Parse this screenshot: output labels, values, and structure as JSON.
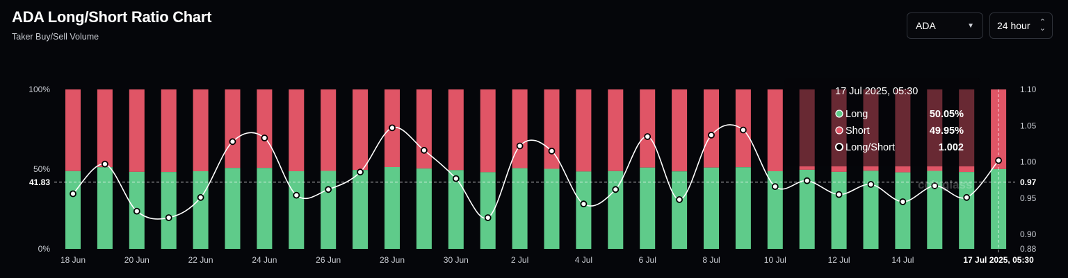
{
  "header": {
    "title": "ADA Long/Short Ratio Chart",
    "subtitle": "Taker Buy/Sell Volume"
  },
  "controls": {
    "symbol": "ADA",
    "interval": "24 hour"
  },
  "colors": {
    "long": "#5fcb8a",
    "short": "#e05566",
    "line": "#ffffff",
    "background": "#05060a"
  },
  "watermark": "coinglass",
  "chart_data": {
    "type": "bar",
    "title": "ADA Long/Short Ratio Chart",
    "subtitle": "Taker Buy/Sell Volume",
    "categories": [
      "18 Jun",
      "19 Jun",
      "20 Jun",
      "21 Jun",
      "22 Jun",
      "23 Jun",
      "24 Jun",
      "25 Jun",
      "26 Jun",
      "27 Jun",
      "28 Jun",
      "29 Jun",
      "30 Jun",
      "1 Jul",
      "2 Jul",
      "3 Jul",
      "4 Jul",
      "5 Jul",
      "6 Jul",
      "7 Jul",
      "8 Jul",
      "9 Jul",
      "10 Jul",
      "11 Jul",
      "12 Jul",
      "13 Jul",
      "14 Jul",
      "15 Jul",
      "16 Jul",
      "17 Jul"
    ],
    "x_tick_labels": [
      "18 Jun",
      "20 Jun",
      "22 Jun",
      "24 Jun",
      "26 Jun",
      "28 Jun",
      "30 Jun",
      "2 Jul",
      "4 Jul",
      "6 Jul",
      "8 Jul",
      "10 Jul",
      "12 Jul",
      "14 Jul"
    ],
    "series": [
      {
        "name": "Long",
        "unit": "%",
        "values": [
          48.8,
          51.2,
          48.3,
          48.2,
          48.7,
          50.8,
          50.8,
          48.7,
          48.9,
          49.5,
          51.3,
          50.4,
          49.4,
          48.1,
          50.6,
          50.2,
          48.5,
          48.8,
          51.0,
          48.6,
          51.0,
          51.2,
          48.7,
          49.6,
          48.3,
          49.0,
          48.0,
          48.9,
          48.2,
          50.05
        ]
      },
      {
        "name": "Short",
        "unit": "%",
        "values": [
          51.2,
          48.8,
          51.7,
          51.8,
          51.3,
          49.2,
          49.2,
          51.3,
          51.1,
          50.5,
          48.7,
          49.6,
          50.6,
          51.9,
          49.4,
          49.8,
          51.5,
          51.2,
          49.0,
          51.4,
          49.0,
          48.8,
          51.3,
          50.4,
          51.7,
          51.0,
          52.0,
          51.1,
          51.8,
          49.95
        ]
      },
      {
        "name": "Long/Short",
        "values": [
          0.956,
          0.997,
          0.932,
          0.923,
          0.951,
          1.028,
          1.033,
          0.954,
          0.962,
          0.986,
          1.047,
          1.016,
          0.977,
          0.923,
          1.022,
          1.015,
          0.942,
          0.962,
          1.035,
          0.948,
          1.037,
          1.044,
          0.966,
          0.974,
          0.955,
          0.969,
          0.945,
          0.967,
          0.951,
          1.002
        ]
      }
    ],
    "y_left": {
      "ticks": [
        "0%",
        "50%",
        "100%"
      ],
      "ylim": [
        0,
        100
      ]
    },
    "y_right": {
      "ticks": [
        "0.88",
        "0.90",
        "0.95",
        "1.00",
        "1.05",
        "1.10"
      ],
      "ylim": [
        0.88,
        1.1
      ]
    },
    "crosshair": {
      "left_label": "41.83",
      "right_label": "0.97",
      "x_label": "17 Jul 2025, 05:30"
    },
    "tooltip": {
      "title": "17 Jul 2025, 05:30",
      "rows": [
        {
          "label": "Long",
          "value": "50.05%"
        },
        {
          "label": "Short",
          "value": "49.95%"
        },
        {
          "label": "Long/Short",
          "value": "1.002"
        }
      ]
    }
  }
}
